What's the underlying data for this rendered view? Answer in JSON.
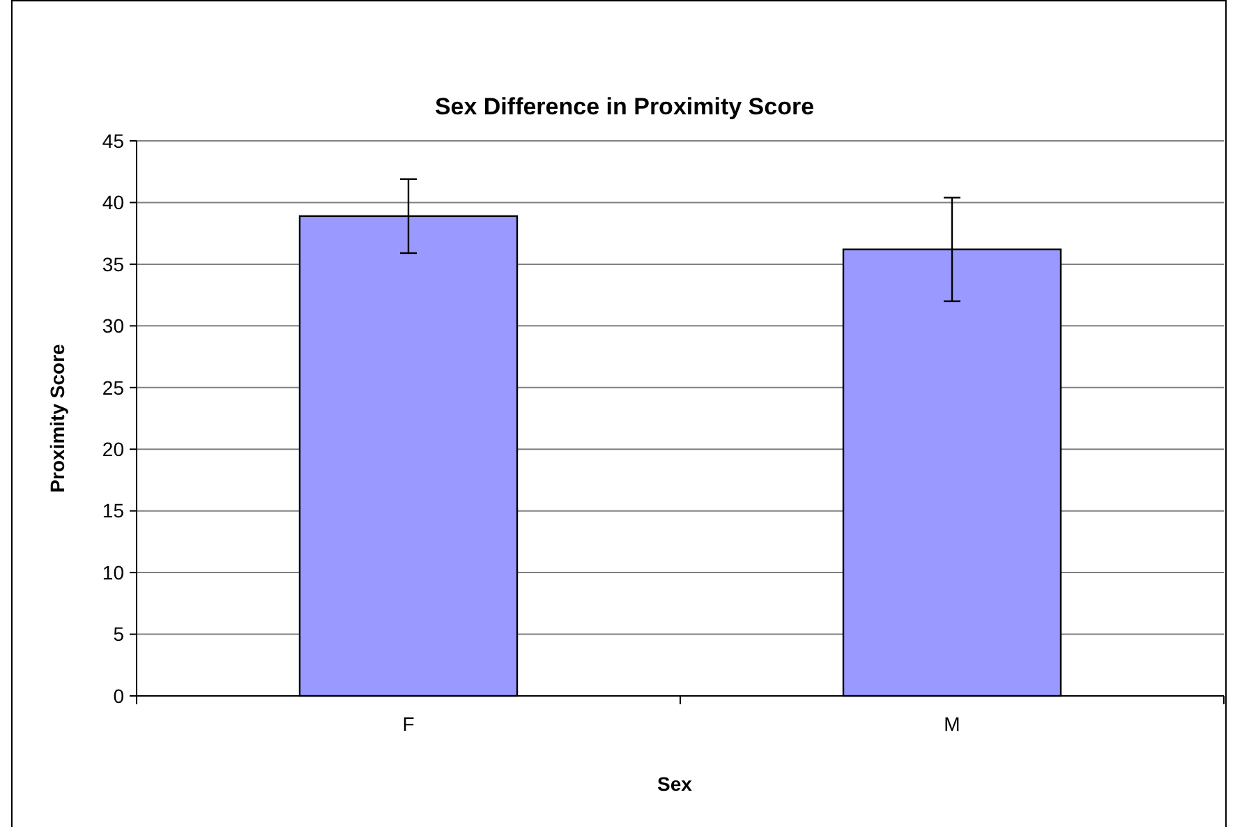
{
  "chart_data": {
    "type": "bar",
    "title": "Sex Difference in Proximity Score",
    "xlabel": "Sex",
    "ylabel": "Proximity Score",
    "categories": [
      "F",
      "M"
    ],
    "values": [
      38.9,
      36.2
    ],
    "errors": [
      3.0,
      4.2
    ],
    "color": "#9999ff",
    "ylim": [
      0,
      45
    ],
    "yticks": [
      0,
      5,
      10,
      15,
      20,
      25,
      30,
      35,
      40,
      45
    ],
    "grid": "y"
  }
}
